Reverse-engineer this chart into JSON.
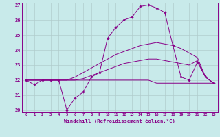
{
  "xlabel": "Windchill (Refroidissement éolien,°C)",
  "x_values": [
    0,
    1,
    2,
    3,
    4,
    5,
    6,
    7,
    8,
    9,
    10,
    11,
    12,
    13,
    14,
    15,
    16,
    17,
    18,
    19,
    20,
    21,
    22,
    23
  ],
  "line_spiky": [
    22.0,
    21.7,
    22.0,
    22.0,
    22.0,
    20.0,
    20.8,
    21.2,
    22.2,
    22.5,
    24.8,
    25.5,
    26.0,
    26.2,
    26.9,
    27.0,
    26.8,
    26.5,
    24.3,
    22.2,
    22.0,
    23.2,
    22.2,
    21.8
  ],
  "line_upper": [
    22.0,
    22.0,
    22.0,
    22.0,
    22.0,
    22.0,
    22.2,
    22.5,
    22.8,
    23.1,
    23.4,
    23.7,
    23.9,
    24.1,
    24.3,
    24.4,
    24.5,
    24.4,
    24.3,
    24.1,
    23.8,
    23.5,
    22.2,
    21.8
  ],
  "line_mid": [
    22.0,
    22.0,
    22.0,
    22.0,
    22.0,
    22.0,
    22.0,
    22.1,
    22.3,
    22.5,
    22.7,
    22.9,
    23.1,
    23.2,
    23.3,
    23.4,
    23.4,
    23.3,
    23.2,
    23.1,
    23.0,
    23.3,
    22.2,
    21.8
  ],
  "line_flat": [
    22.0,
    22.0,
    22.0,
    22.0,
    22.0,
    22.0,
    22.0,
    22.0,
    22.0,
    22.0,
    22.0,
    22.0,
    22.0,
    22.0,
    22.0,
    22.0,
    21.8,
    21.8,
    21.8,
    21.8,
    21.8,
    21.8,
    21.8,
    21.8
  ],
  "line_color": "#880088",
  "bg_color": "#c8eaea",
  "grid_color": "#b0cccc",
  "ylim": [
    19.85,
    27.15
  ],
  "yticks": [
    20,
    21,
    22,
    23,
    24,
    25,
    26,
    27
  ],
  "xticks": [
    0,
    1,
    2,
    3,
    4,
    5,
    6,
    7,
    8,
    9,
    10,
    11,
    12,
    13,
    14,
    15,
    16,
    17,
    18,
    19,
    20,
    21,
    22,
    23
  ],
  "marker": "D",
  "marker_size": 1.8,
  "lw": 0.7
}
